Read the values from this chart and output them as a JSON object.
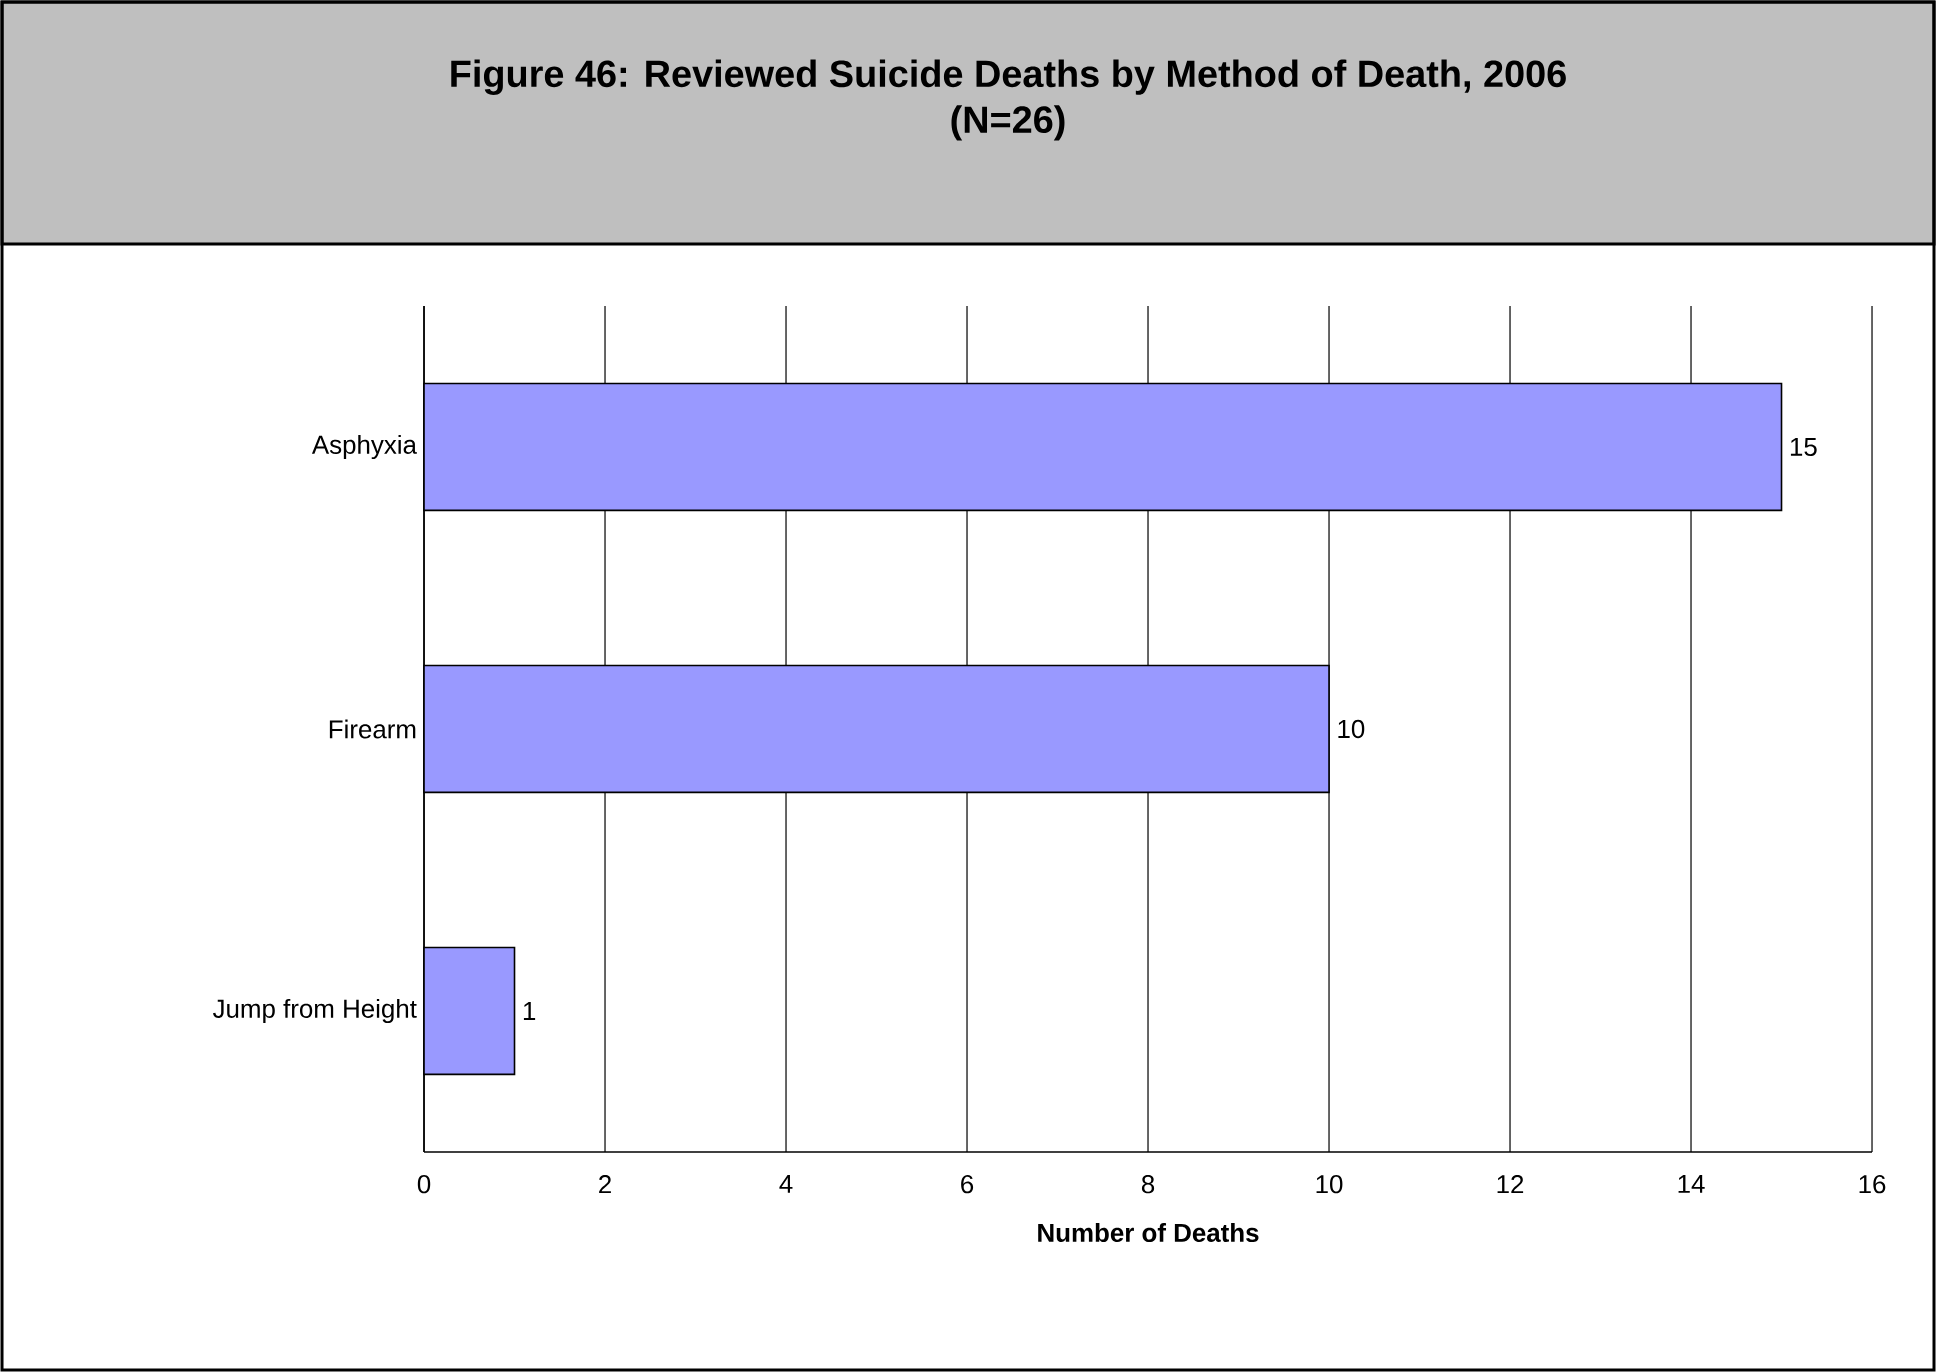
{
  "chart_data": {
    "type": "bar",
    "orientation": "horizontal",
    "title": "Figure 46: Reviewed Suicide Deaths by Method of Death, 2006",
    "subtitle": "(N=26)",
    "xlabel": "Number of Deaths",
    "categories": [
      "Asphyxia",
      "Firearm",
      "Jump from Height"
    ],
    "values": [
      15,
      10,
      1
    ],
    "color": "#9999ff",
    "xlim": [
      0,
      16
    ],
    "xticks": [
      0,
      2,
      4,
      6,
      8,
      10,
      12,
      14,
      16
    ],
    "grid": "x",
    "data_labels": true
  }
}
